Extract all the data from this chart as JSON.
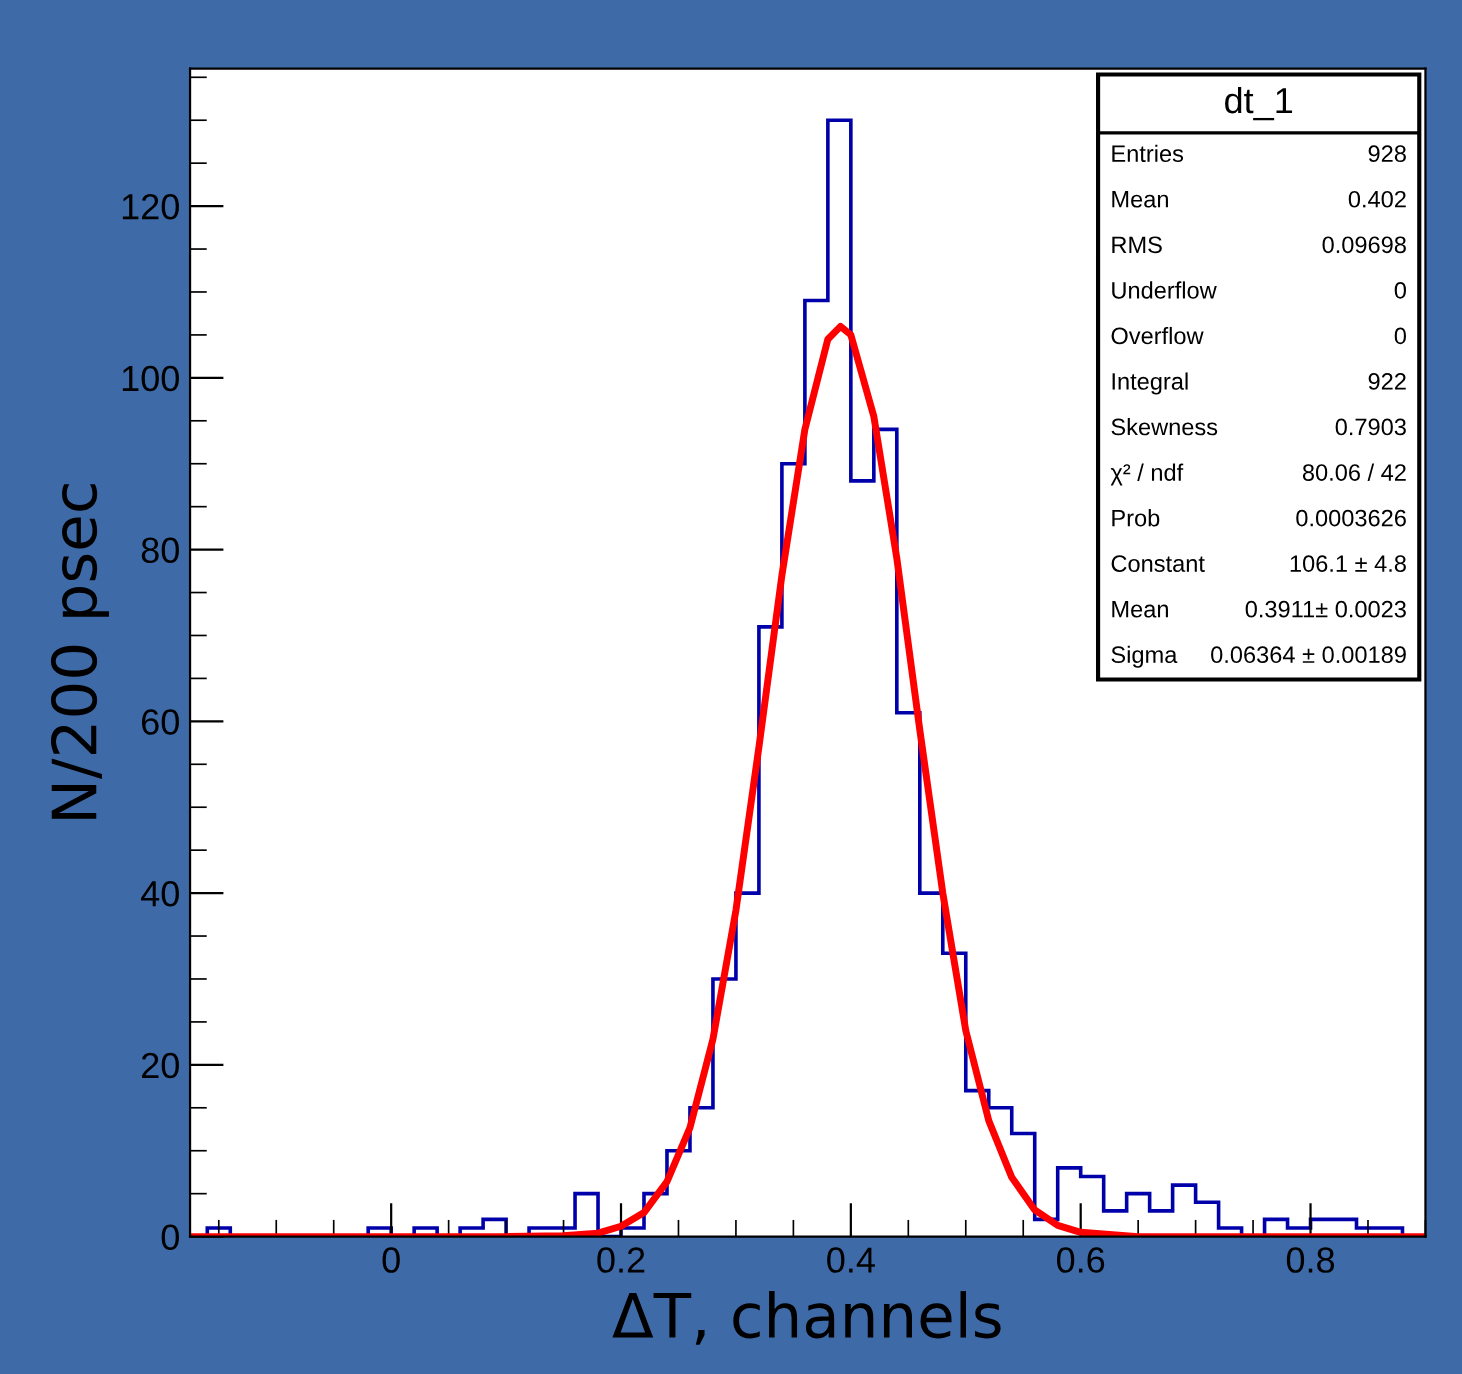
{
  "chart_data": {
    "type": "histogram",
    "xlabel": "ΔT, channels",
    "ylabel": "N/200 psec",
    "bins": [
      -0.16,
      -0.14,
      -0.12,
      -0.1,
      -0.08,
      -0.06,
      -0.04,
      -0.02,
      0,
      0.02,
      0.04,
      0.06,
      0.08,
      0.1,
      0.12,
      0.14,
      0.16,
      0.18,
      0.2,
      0.22,
      0.24,
      0.26,
      0.28,
      0.3,
      0.32,
      0.34,
      0.36,
      0.38,
      0.4,
      0.42,
      0.44,
      0.46,
      0.48,
      0.5,
      0.52,
      0.54,
      0.56,
      0.58,
      0.6,
      0.62,
      0.64,
      0.66,
      0.68,
      0.7,
      0.72,
      0.74,
      0.76,
      0.78,
      0.8,
      0.82,
      0.84,
      0.86,
      0.88
    ],
    "values": [
      1,
      0,
      0,
      0,
      0,
      0,
      0,
      1,
      0,
      1,
      0,
      1,
      2,
      0,
      1,
      1,
      5,
      0,
      1,
      5,
      10,
      15,
      30,
      40,
      71,
      90,
      109,
      130,
      88,
      94,
      61,
      40,
      33,
      17,
      15,
      12,
      2,
      8,
      7,
      3,
      5,
      3,
      6,
      4,
      1,
      0,
      2,
      1,
      2,
      2,
      1,
      1
    ],
    "color": "#0000aa",
    "series": [
      {
        "type": "line",
        "color": "#ff0000",
        "x": [
          -0.175,
          0.1,
          0.15,
          0.18,
          0.2,
          0.22,
          0.24,
          0.26,
          0.28,
          0.3,
          0.32,
          0.34,
          0.36,
          0.38,
          0.391,
          0.4,
          0.42,
          0.44,
          0.46,
          0.48,
          0.5,
          0.52,
          0.54,
          0.56,
          0.58,
          0.6,
          0.65,
          0.9
        ],
        "values": [
          0,
          0,
          0.1,
          0.4,
          1.2,
          2.8,
          6.4,
          12.7,
          23,
          38,
          57,
          77,
          94,
          104.5,
          106,
          105,
          95.5,
          79,
          59,
          40,
          24,
          13.5,
          6.9,
          3.1,
          1.3,
          0.5,
          0,
          0
        ]
      }
    ],
    "xlim": [
      -0.175,
      0.9
    ],
    "xticks": [
      0,
      0.2,
      0.4,
      0.6,
      0.8
    ],
    "ylim": [
      0,
      136
    ],
    "yticks": [
      0,
      20,
      40,
      60,
      80,
      100,
      120
    ],
    "grid": false,
    "legend": false,
    "annotations": [
      "dt_1",
      "Entries",
      "928",
      "Mean",
      "0.402",
      "RMS",
      "0.09698",
      "Underflow",
      "0",
      "Overflow",
      "0",
      "Integral",
      "922",
      "Skewness",
      "0.7903",
      "χ² / ndf",
      "80.06 / 42",
      "Prob",
      "0.0003626",
      "Constant",
      "106.1 ± 4.8",
      "Mean",
      "0.3911± 0.0023",
      "Sigma",
      "0.06364 ± 0.00189"
    ]
  }
}
